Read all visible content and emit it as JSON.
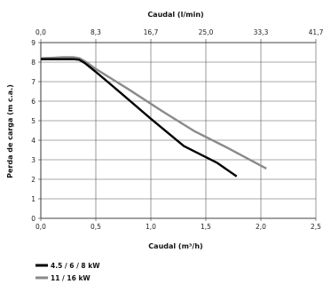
{
  "chart_data": {
    "type": "line",
    "title": "",
    "xlabel": "Caudal (m³/h)",
    "ylabel": "Perda de carga (m c.a.)",
    "x2label": "Caudal (l/min)",
    "xlim": [
      0,
      2.5
    ],
    "ylim": [
      0,
      9
    ],
    "x2lim": [
      0,
      41.7
    ],
    "xticks": [
      "0,0",
      "0,5",
      "1,0",
      "1,5",
      "2,0",
      "2,5"
    ],
    "x2ticks": [
      "0,0",
      "8,3",
      "16,7",
      "25,0",
      "33,3",
      "41,7"
    ],
    "yticks": [
      "0",
      "1",
      "2",
      "3",
      "4",
      "5",
      "6",
      "7",
      "8",
      "9"
    ],
    "grid": true,
    "legend_position": "bottom-left",
    "series": [
      {
        "name": "4.5 / 6 / 8 kW",
        "color": "#000000",
        "x": [
          0.0,
          0.1,
          0.2,
          0.3,
          0.35,
          0.4,
          0.5,
          0.7,
          1.0,
          1.3,
          1.6,
          1.78
        ],
        "y": [
          8.15,
          8.15,
          8.15,
          8.15,
          8.12,
          7.95,
          7.5,
          6.55,
          5.1,
          3.7,
          2.85,
          2.15
        ]
      },
      {
        "name": "11 / 16 kW",
        "color": "#8a8a8a",
        "x": [
          0.0,
          0.1,
          0.2,
          0.3,
          0.35,
          0.4,
          0.5,
          0.8,
          1.1,
          1.4,
          1.7,
          2.05
        ],
        "y": [
          8.2,
          8.22,
          8.25,
          8.25,
          8.2,
          8.05,
          7.65,
          6.6,
          5.5,
          4.45,
          3.6,
          2.55
        ]
      }
    ]
  }
}
